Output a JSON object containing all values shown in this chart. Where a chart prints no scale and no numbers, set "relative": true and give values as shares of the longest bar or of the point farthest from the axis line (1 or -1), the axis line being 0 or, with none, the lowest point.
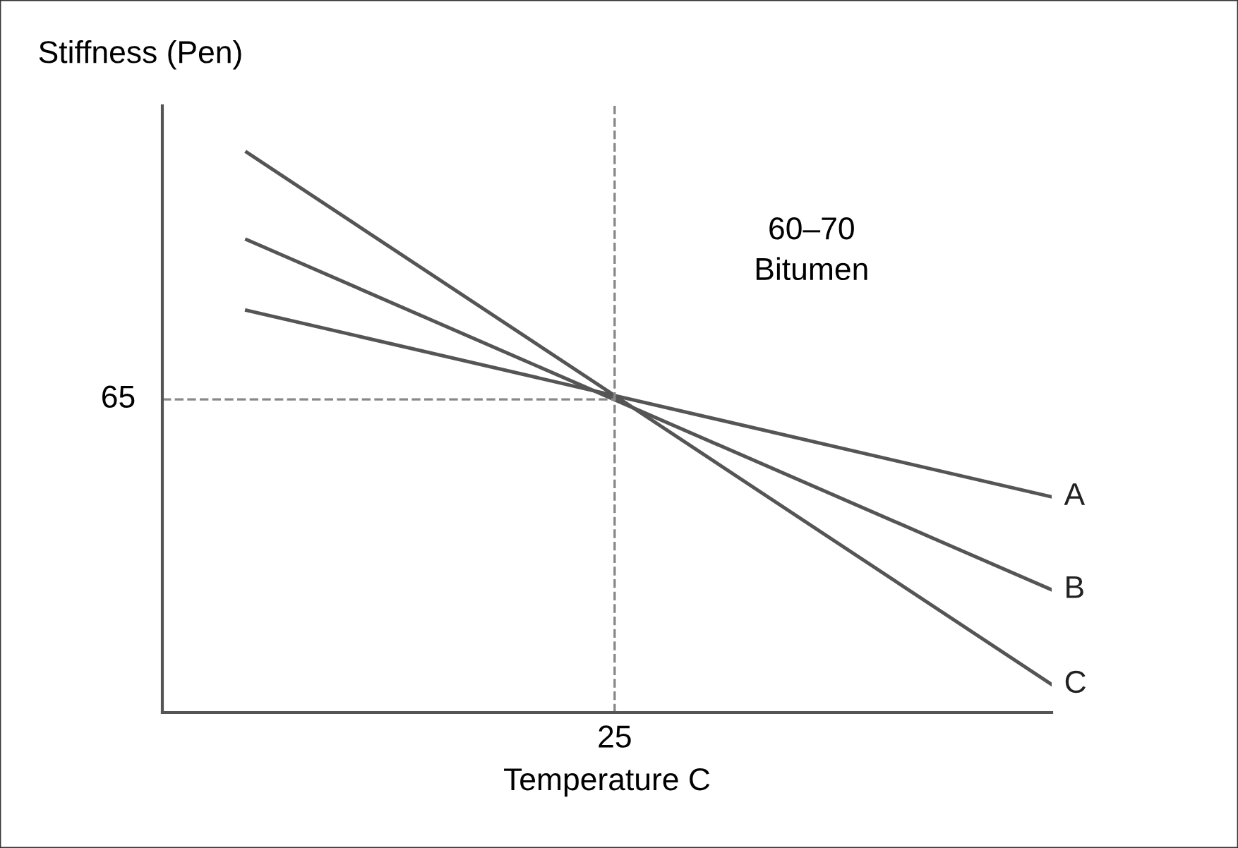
{
  "chart_data": {
    "type": "line",
    "relative": true,
    "xlabel": "Temperature C",
    "ylabel": "Stiffness (Pen)",
    "categories": [
      null,
      null,
      null,
      null,
      null,
      null,
      null,
      null,
      null,
      null,
      null,
      null,
      null,
      null
    ],
    "series": [
      {
        "name": "A",
        "color": "#555555",
        "values": [
          0.718,
          null,
          null,
          null,
          null,
          null,
          null,
          null,
          null,
          null,
          null,
          null,
          null,
          0.385
        ]
      },
      {
        "name": "B",
        "color": "#555555",
        "values": [
          0.844,
          null,
          null,
          null,
          null,
          null,
          null,
          null,
          null,
          null,
          null,
          null,
          null,
          0.219
        ]
      },
      {
        "name": "C",
        "color": "#555555",
        "values": [
          1.0,
          null,
          null,
          null,
          null,
          null,
          null,
          null,
          null,
          null,
          null,
          null,
          null,
          0.05
        ]
      }
    ],
    "ref_lines": [
      {
        "axis": "y",
        "value": 0.559,
        "color": "#888888",
        "line_style": "dashed"
      }
    ],
    "annotations": [
      "60–70\nBitumen",
      "25",
      "65"
    ],
    "legend": false
  }
}
